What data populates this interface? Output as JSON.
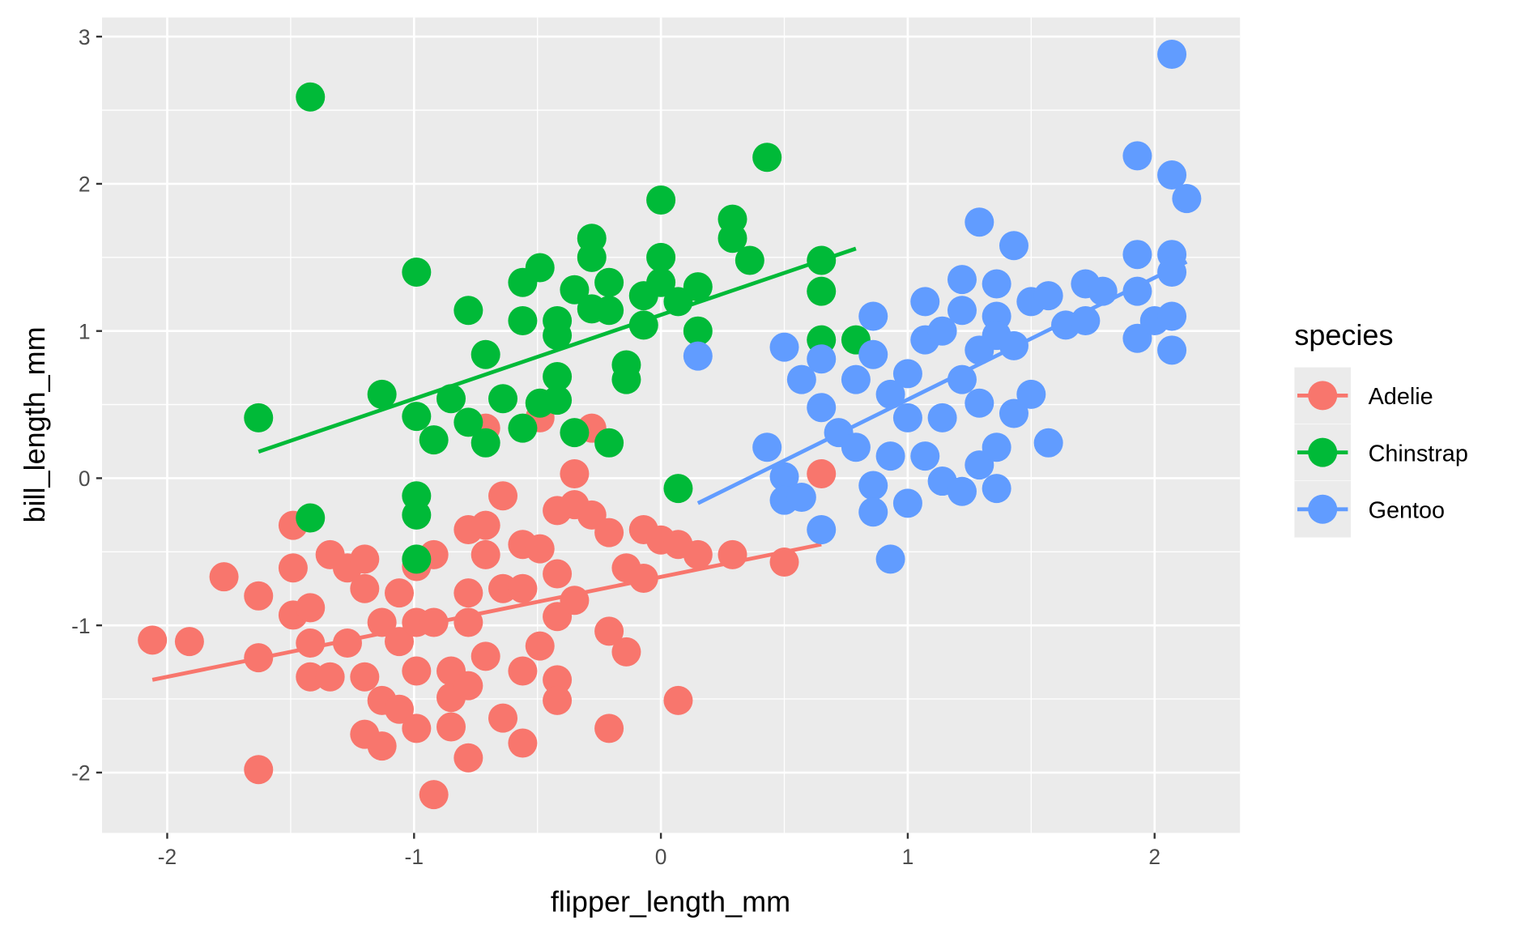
{
  "chart_data": {
    "type": "scatter",
    "xlabel": "flipper_length_mm",
    "ylabel": "bill_length_mm",
    "xlim": [
      -2.264,
      2.346
    ],
    "ylim": [
      -2.41,
      3.13
    ],
    "xticks": [
      -2,
      -1,
      0,
      1,
      2
    ],
    "yticks": [
      -2,
      -1,
      0,
      1,
      2,
      3
    ],
    "grid": true,
    "legend": {
      "title": "species",
      "position": "right"
    },
    "series": [
      {
        "name": "Adelie",
        "color": "#F8766D",
        "fit": [
          [
            -2.06,
            -1.37
          ],
          [
            0.65,
            -0.45
          ]
        ],
        "points": [
          [
            -2.06,
            -1.1
          ],
          [
            -1.91,
            -1.11
          ],
          [
            -1.77,
            -0.67
          ],
          [
            -1.63,
            -0.8
          ],
          [
            -1.63,
            -1.22
          ],
          [
            -1.63,
            -1.98
          ],
          [
            -1.49,
            -0.32
          ],
          [
            -1.49,
            -0.61
          ],
          [
            -1.49,
            -0.93
          ],
          [
            -1.42,
            -0.88
          ],
          [
            -1.42,
            -1.12
          ],
          [
            -1.42,
            -1.35
          ],
          [
            -1.34,
            -1.35
          ],
          [
            -1.34,
            -0.52
          ],
          [
            -1.27,
            -0.61
          ],
          [
            -1.27,
            -1.12
          ],
          [
            -1.2,
            -0.55
          ],
          [
            -1.2,
            -0.75
          ],
          [
            -1.2,
            -1.35
          ],
          [
            -1.2,
            -1.74
          ],
          [
            -1.13,
            -1.82
          ],
          [
            -1.13,
            -1.51
          ],
          [
            -1.13,
            -0.98
          ],
          [
            -1.06,
            -0.78
          ],
          [
            -1.06,
            -1.11
          ],
          [
            -1.06,
            -1.57
          ],
          [
            -0.99,
            -1.7
          ],
          [
            -0.99,
            -1.31
          ],
          [
            -0.99,
            -0.98
          ],
          [
            -0.99,
            -0.6
          ],
          [
            -0.92,
            -0.52
          ],
          [
            -0.92,
            -2.15
          ],
          [
            -0.92,
            -0.98
          ],
          [
            -0.85,
            -1.31
          ],
          [
            -0.85,
            -1.49
          ],
          [
            -0.85,
            -1.69
          ],
          [
            -0.78,
            -0.35
          ],
          [
            -0.78,
            -0.78
          ],
          [
            -0.78,
            -0.98
          ],
          [
            -0.78,
            -1.9
          ],
          [
            -0.78,
            -1.41
          ],
          [
            -0.71,
            -0.32
          ],
          [
            -0.71,
            -0.52
          ],
          [
            -0.71,
            -1.21
          ],
          [
            -0.64,
            -0.12
          ],
          [
            -0.64,
            -0.75
          ],
          [
            -0.64,
            -1.63
          ],
          [
            -0.56,
            -0.45
          ],
          [
            -0.56,
            -0.75
          ],
          [
            -0.56,
            -1.31
          ],
          [
            -0.56,
            -1.8
          ],
          [
            -0.49,
            -0.48
          ],
          [
            -0.49,
            -1.14
          ],
          [
            -0.42,
            -0.22
          ],
          [
            -0.42,
            -0.65
          ],
          [
            -0.42,
            -0.94
          ],
          [
            -0.42,
            -1.37
          ],
          [
            -0.42,
            -1.51
          ],
          [
            -0.35,
            0.03
          ],
          [
            -0.35,
            -0.18
          ],
          [
            -0.35,
            -0.83
          ],
          [
            -0.28,
            0.34
          ],
          [
            -0.28,
            -0.25
          ],
          [
            -0.21,
            -0.37
          ],
          [
            -0.21,
            -1.04
          ],
          [
            -0.21,
            -1.7
          ],
          [
            -0.14,
            -0.61
          ],
          [
            -0.14,
            -1.18
          ],
          [
            -0.07,
            -0.35
          ],
          [
            -0.07,
            -0.68
          ],
          [
            0.0,
            -0.42
          ],
          [
            0.07,
            -0.45
          ],
          [
            0.07,
            -1.51
          ],
          [
            0.15,
            -0.52
          ],
          [
            0.29,
            -0.52
          ],
          [
            0.5,
            -0.57
          ],
          [
            0.65,
            0.03
          ],
          [
            -0.49,
            0.41
          ],
          [
            -0.71,
            0.34
          ]
        ]
      },
      {
        "name": "Chinstrap",
        "color": "#00BA38",
        "fit": [
          [
            -1.63,
            0.18
          ],
          [
            0.79,
            1.56
          ]
        ],
        "points": [
          [
            -1.63,
            0.41
          ],
          [
            -1.42,
            2.59
          ],
          [
            -1.42,
            -0.27
          ],
          [
            -1.13,
            0.57
          ],
          [
            -0.99,
            1.4
          ],
          [
            -0.99,
            0.42
          ],
          [
            -0.99,
            -0.12
          ],
          [
            -0.99,
            -0.25
          ],
          [
            -0.99,
            -0.55
          ],
          [
            -0.92,
            0.26
          ],
          [
            -0.85,
            0.54
          ],
          [
            -0.78,
            1.14
          ],
          [
            -0.78,
            0.38
          ],
          [
            -0.71,
            0.84
          ],
          [
            -0.71,
            0.24
          ],
          [
            -0.64,
            0.54
          ],
          [
            -0.56,
            1.33
          ],
          [
            -0.56,
            1.07
          ],
          [
            -0.56,
            0.34
          ],
          [
            -0.49,
            1.43
          ],
          [
            -0.49,
            0.51
          ],
          [
            -0.42,
            1.07
          ],
          [
            -0.42,
            0.97
          ],
          [
            -0.42,
            0.69
          ],
          [
            -0.42,
            0.53
          ],
          [
            -0.35,
            1.28
          ],
          [
            -0.35,
            0.31
          ],
          [
            -0.28,
            1.63
          ],
          [
            -0.28,
            1.5
          ],
          [
            -0.28,
            1.15
          ],
          [
            -0.21,
            1.33
          ],
          [
            -0.21,
            1.14
          ],
          [
            -0.21,
            0.24
          ],
          [
            -0.14,
            0.77
          ],
          [
            -0.14,
            0.67
          ],
          [
            -0.07,
            1.24
          ],
          [
            -0.07,
            1.04
          ],
          [
            0.0,
            1.89
          ],
          [
            0.0,
            1.5
          ],
          [
            0.0,
            1.33
          ],
          [
            0.07,
            -0.07
          ],
          [
            0.07,
            1.2
          ],
          [
            0.15,
            1.3
          ],
          [
            0.15,
            1.0
          ],
          [
            0.29,
            1.76
          ],
          [
            0.29,
            1.63
          ],
          [
            0.36,
            1.48
          ],
          [
            0.43,
            2.18
          ],
          [
            0.65,
            1.48
          ],
          [
            0.65,
            1.27
          ],
          [
            0.65,
            0.94
          ],
          [
            0.79,
            0.94
          ]
        ]
      },
      {
        "name": "Gentoo",
        "color": "#619CFF",
        "fit": [
          [
            0.15,
            -0.17
          ],
          [
            2.13,
            1.47
          ]
        ],
        "points": [
          [
            0.15,
            0.83
          ],
          [
            0.43,
            0.21
          ],
          [
            0.5,
            0.89
          ],
          [
            0.5,
            0.01
          ],
          [
            0.5,
            -0.15
          ],
          [
            0.57,
            0.67
          ],
          [
            0.57,
            -0.13
          ],
          [
            0.65,
            0.81
          ],
          [
            0.65,
            0.48
          ],
          [
            0.65,
            -0.35
          ],
          [
            0.72,
            0.31
          ],
          [
            0.79,
            0.67
          ],
          [
            0.79,
            0.21
          ],
          [
            0.86,
            1.1
          ],
          [
            0.86,
            0.84
          ],
          [
            0.86,
            -0.05
          ],
          [
            0.86,
            -0.23
          ],
          [
            0.93,
            0.57
          ],
          [
            0.93,
            0.15
          ],
          [
            0.93,
            -0.55
          ],
          [
            1.0,
            0.71
          ],
          [
            1.0,
            0.41
          ],
          [
            1.0,
            -0.17
          ],
          [
            1.07,
            1.2
          ],
          [
            1.07,
            0.94
          ],
          [
            1.07,
            0.15
          ],
          [
            1.14,
            1.0
          ],
          [
            1.14,
            0.41
          ],
          [
            1.14,
            -0.02
          ],
          [
            1.22,
            1.35
          ],
          [
            1.22,
            1.14
          ],
          [
            1.22,
            0.67
          ],
          [
            1.22,
            -0.09
          ],
          [
            1.29,
            1.74
          ],
          [
            1.29,
            0.87
          ],
          [
            1.29,
            0.51
          ],
          [
            1.29,
            0.09
          ],
          [
            1.36,
            1.32
          ],
          [
            1.36,
            1.1
          ],
          [
            1.36,
            0.97
          ],
          [
            1.36,
            0.21
          ],
          [
            1.36,
            -0.07
          ],
          [
            1.43,
            1.58
          ],
          [
            1.43,
            0.9
          ],
          [
            1.43,
            0.44
          ],
          [
            1.5,
            1.2
          ],
          [
            1.5,
            0.57
          ],
          [
            1.57,
            0.24
          ],
          [
            1.57,
            1.24
          ],
          [
            1.64,
            1.04
          ],
          [
            1.72,
            1.32
          ],
          [
            1.72,
            1.07
          ],
          [
            1.79,
            1.27
          ],
          [
            1.93,
            2.19
          ],
          [
            1.93,
            1.52
          ],
          [
            1.93,
            1.27
          ],
          [
            1.93,
            0.95
          ],
          [
            2.0,
            1.07
          ],
          [
            2.07,
            2.88
          ],
          [
            2.07,
            2.06
          ],
          [
            2.07,
            1.52
          ],
          [
            2.07,
            1.4
          ],
          [
            2.07,
            1.1
          ],
          [
            2.07,
            0.87
          ],
          [
            2.13,
            1.9
          ]
        ]
      }
    ]
  }
}
